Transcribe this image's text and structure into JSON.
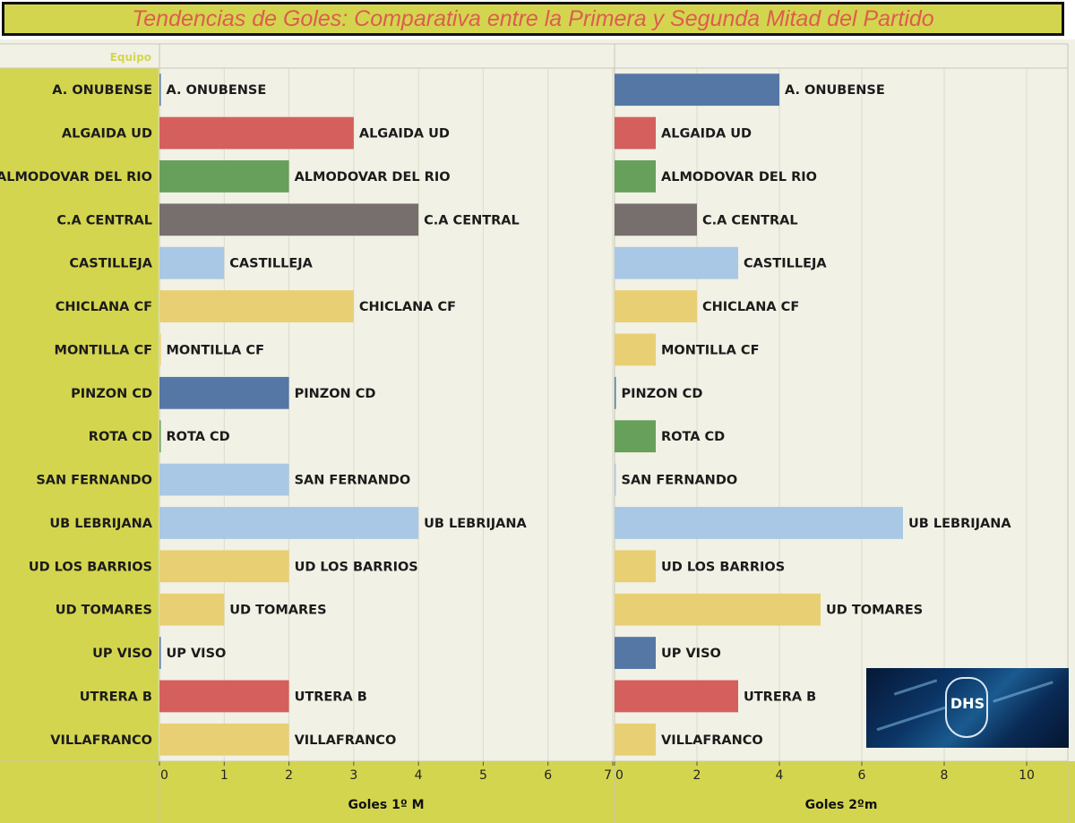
{
  "title": "Tendencias de Goles: Comparativa entre la Primera y Segunda Mitad del Partido",
  "header_label": "Equipo",
  "colors": {
    "background": "#f1f1e5",
    "sidebar": "#d4d54f",
    "title_text": "#dc5d4f",
    "grid": "#dcdccc"
  },
  "logo": {
    "text": "DHS",
    "icon": "shield-logo-icon"
  },
  "chart_data": [
    {
      "type": "bar",
      "orientation": "horizontal",
      "xlabel": "Goles 1º M",
      "xlim": [
        0,
        7
      ],
      "ticks": [
        0,
        1,
        2,
        3,
        4,
        5,
        6,
        7
      ],
      "grid": true,
      "categories": [
        "A. ONUBENSE",
        "ALGAIDA UD",
        "ALMODOVAR DEL RIO",
        "C.A CENTRAL",
        "CASTILLEJA",
        "CHICLANA CF",
        "MONTILLA CF",
        "PINZON CD",
        "ROTA CD",
        "SAN FERNANDO",
        "UB LEBRIJANA",
        "UD LOS BARRIOS",
        "UD TOMARES",
        "UP VISO",
        "UTRERA B",
        "VILLAFRANCO"
      ],
      "values": [
        0,
        3,
        2,
        4,
        1,
        3,
        0,
        2,
        0,
        2,
        4,
        2,
        1,
        0,
        2,
        2
      ],
      "colors": [
        "#5577a6",
        "#d45f5c",
        "#66a05a",
        "#776e6e",
        "#a8c8e5",
        "#e9cf74",
        "#e9cf74",
        "#5577a6",
        "#66a05a",
        "#a8c8e5",
        "#a8c8e5",
        "#e9cf74",
        "#e9cf74",
        "#5577a6",
        "#d45f5c",
        "#e9cf74"
      ]
    },
    {
      "type": "bar",
      "orientation": "horizontal",
      "xlabel": "Goles 2ºm",
      "xlim": [
        0,
        11
      ],
      "ticks": [
        0,
        2,
        4,
        6,
        8,
        10
      ],
      "grid": true,
      "categories": [
        "A. ONUBENSE",
        "ALGAIDA UD",
        "ALMODOVAR DEL RIO",
        "C.A CENTRAL",
        "CASTILLEJA",
        "CHICLANA CF",
        "MONTILLA CF",
        "PINZON CD",
        "ROTA CD",
        "SAN FERNANDO",
        "UB LEBRIJANA",
        "UD LOS BARRIOS",
        "UD TOMARES",
        "UP VISO",
        "UTRERA B",
        "VILLAFRANCO"
      ],
      "values": [
        4,
        1,
        1,
        2,
        3,
        2,
        1,
        0,
        1,
        0,
        7,
        1,
        5,
        1,
        3,
        1
      ],
      "colors": [
        "#5577a6",
        "#d45f5c",
        "#66a05a",
        "#776e6e",
        "#a8c8e5",
        "#e9cf74",
        "#e9cf74",
        "#5577a6",
        "#66a05a",
        "#a8c8e5",
        "#a8c8e5",
        "#e9cf74",
        "#e9cf74",
        "#5577a6",
        "#d45f5c",
        "#e9cf74"
      ]
    }
  ]
}
